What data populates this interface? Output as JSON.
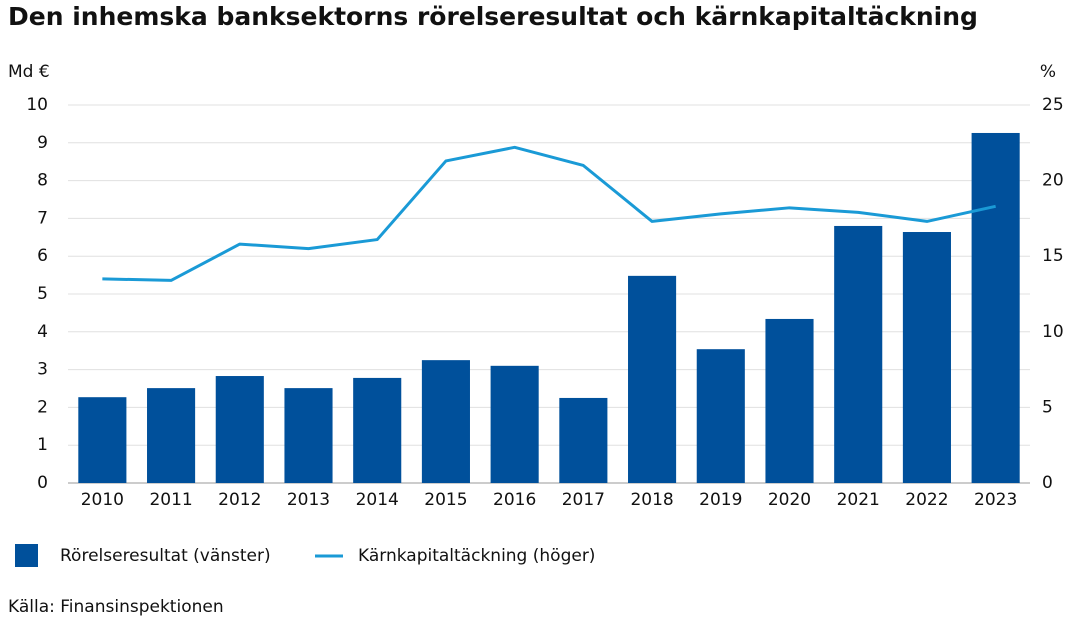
{
  "chart_data": {
    "type": "bar-line",
    "title": "Den inhemska banksektorns rörelseresultat och kärnkapitaltäckning",
    "y_label": "Md €",
    "y2_label": "%",
    "categories": [
      "2010",
      "2011",
      "2012",
      "2013",
      "2014",
      "2015",
      "2016",
      "2017",
      "2018",
      "2019",
      "2020",
      "2021",
      "2022",
      "2023"
    ],
    "series": [
      {
        "name": "Rörelseresultat (vänster)",
        "type": "bar",
        "color": "#00509b",
        "values": [
          2.27,
          2.51,
          2.83,
          2.51,
          2.78,
          3.25,
          3.1,
          2.25,
          5.48,
          3.54,
          4.34,
          6.8,
          6.64,
          9.26
        ]
      },
      {
        "name": "Kärnkapitaltäckning (höger)",
        "type": "line",
        "axis": "y2",
        "color": "#1a9ad6",
        "values": [
          13.5,
          13.4,
          15.8,
          15.5,
          16.1,
          21.3,
          22.2,
          21.0,
          17.3,
          17.8,
          18.2,
          17.9,
          17.3,
          18.3
        ]
      }
    ],
    "ylim": [
      0,
      10
    ],
    "yticks": [
      0,
      1,
      2,
      3,
      4,
      5,
      6,
      7,
      8,
      9,
      10
    ],
    "y2lim": [
      0,
      25
    ],
    "y2ticks": [
      0,
      5,
      10,
      15,
      20,
      25
    ],
    "grid": true,
    "source": "Källa: Finansinspektionen"
  }
}
